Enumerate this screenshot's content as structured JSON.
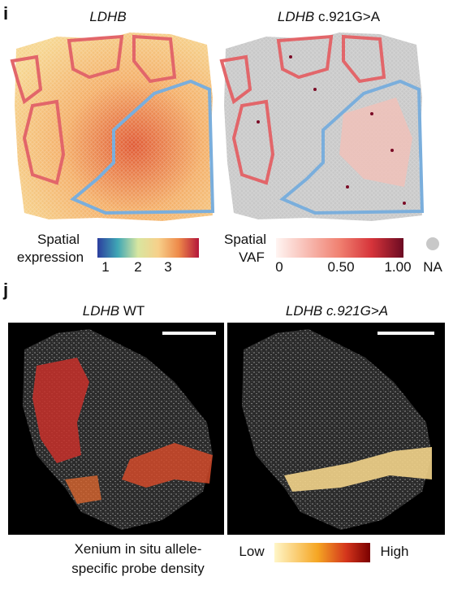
{
  "panel_i": {
    "label": "i",
    "left_title": "LDHB",
    "right_title": {
      "gene": "LDHB",
      "variant": "c.921G>A"
    },
    "expression_legend": {
      "title_line1": "Spatial",
      "title_line2": "expression",
      "ticks": [
        "1",
        "2",
        "3"
      ]
    },
    "vaf_legend": {
      "title_line1": "Spatial",
      "title_line2": "VAF",
      "ticks": [
        "0",
        "0.50",
        "1.00"
      ],
      "na_label": "NA"
    }
  },
  "panel_j": {
    "label": "j",
    "left_title": {
      "gene": "LDHB",
      "suffix": "WT"
    },
    "right_title": {
      "gene": "LDHB",
      "variant": "c.921G>A"
    },
    "legend": {
      "title_line1": "Xenium in situ allele-",
      "title_line2": "specific probe density",
      "low": "Low",
      "high": "High"
    }
  }
}
